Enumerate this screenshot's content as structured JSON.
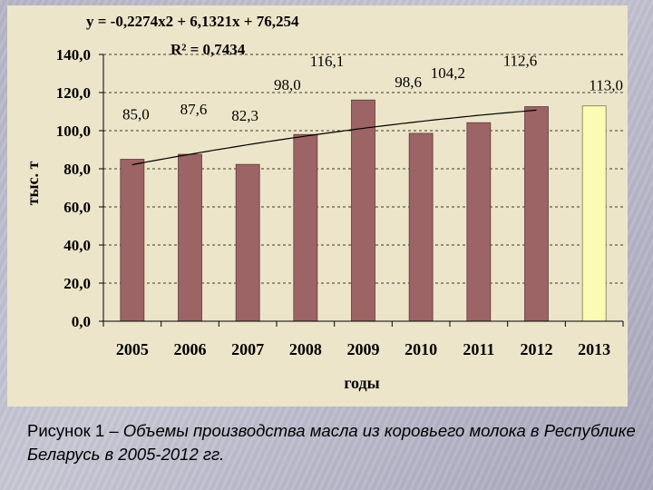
{
  "chart_data": {
    "type": "bar",
    "categories": [
      "2005",
      "2006",
      "2007",
      "2008",
      "2009",
      "2010",
      "2011",
      "2012",
      "2013"
    ],
    "values": [
      85.0,
      87.6,
      82.3,
      98.0,
      116.1,
      98.6,
      104.2,
      112.6,
      113.0
    ],
    "value_labels": [
      "85,0",
      "87,6",
      "82,3",
      "98,0",
      "116,1",
      "98,6",
      "104,2",
      "112,6",
      "113,0"
    ],
    "y_ticks": [
      0,
      20,
      40,
      60,
      80,
      100,
      120,
      140
    ],
    "y_tick_labels": [
      "0,0",
      "20,0",
      "40,0",
      "60,0",
      "80,0",
      "100,0",
      "120,0",
      "140,0"
    ],
    "ylim": [
      0,
      140
    ],
    "ylabel": "тыс. т",
    "xlabel": "годы",
    "equation": "y = -0,2274x2 + 6,1321x + 76,254",
    "r_squared": "R² = 0,7434",
    "trendline": {
      "a": -0.2274,
      "b": 6.1321,
      "c": 76.254
    },
    "bar_color": "#9c6464",
    "highlight_color": "#fbfbb4",
    "highlight_category": "2013",
    "gridlines": "dashed-horizontal"
  },
  "caption": {
    "prefix": "Рисунок 1 – ",
    "text": "Объемы производства масла из коровьего молока в Республике Беларусь в 2005-2012 гг."
  }
}
